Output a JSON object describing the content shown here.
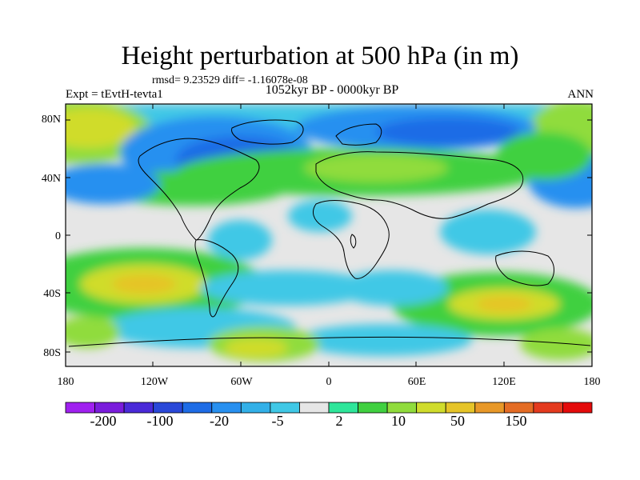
{
  "title": "Height perturbation at 500 hPa (in m)",
  "stats": "rmsd= 9.23529 diff= -1.16078e-08",
  "experiment": "Expt = tEvtH-tevta1",
  "period": "1052kyr BP - 0000kyr BP",
  "season": "ANN",
  "lat_labels": [
    "80N",
    "40N",
    "0",
    "40S",
    "80S"
  ],
  "lon_labels": [
    "180",
    "120W",
    "60W",
    "0",
    "60E",
    "120E",
    "180"
  ],
  "colorbar": {
    "colors": [
      "#a020f0",
      "#7a1cdc",
      "#4a2ad8",
      "#2a48d8",
      "#1e6ce6",
      "#2890f0",
      "#32b0e8",
      "#40c8e6",
      "#e6e6e6",
      "#2ee69a",
      "#40d040",
      "#90dc3c",
      "#d0dc2c",
      "#e6c428",
      "#e89828",
      "#e46c24",
      "#e43a1e",
      "#e40a0a"
    ],
    "labels": [
      "-200",
      "-100",
      "-20",
      "-5",
      "2",
      "10",
      "50",
      "150"
    ]
  }
}
